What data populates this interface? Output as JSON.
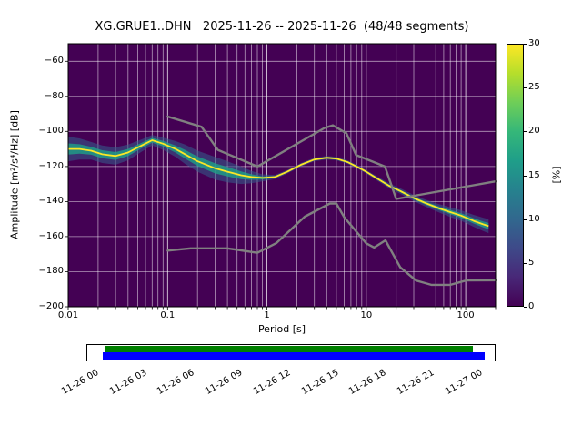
{
  "chart_data": {
    "type": "heatmap",
    "title": "XG.GRUE1..DHN   2025-11-26 -- 2025-11-26  (48/48 segments)",
    "xlabel": "Period [s]",
    "ylabel": "Amplitude [m²/s⁴/Hz] [dB]",
    "xscale": "log",
    "xlim": [
      0.01,
      200
    ],
    "ylim": [
      -200,
      -50
    ],
    "xticks": [
      0.01,
      0.1,
      1,
      10,
      100
    ],
    "xtick_labels": [
      "0.01",
      "0.1",
      "1",
      "10",
      "100"
    ],
    "yticks": [
      -60,
      -80,
      -100,
      -120,
      -140,
      -160,
      -180,
      -200
    ],
    "ytick_labels": [
      "−60",
      "−80",
      "−100",
      "−120",
      "−140",
      "−160",
      "−180",
      "−200"
    ],
    "grid": true,
    "background_color": "#440154",
    "grid_color": "#ffffff",
    "colorbar": {
      "label": "[%]",
      "min": 0,
      "max": 30,
      "ticks": [
        0,
        5,
        10,
        15,
        20,
        25,
        30
      ],
      "colors": [
        "#440154",
        "#482878",
        "#3e4a89",
        "#31688e",
        "#26828e",
        "#1f9e89",
        "#35b779",
        "#6ece58",
        "#b5de2b",
        "#fde725"
      ]
    },
    "psd_mode": {
      "comment": "mode of probabilistic power spectral density; spread_db is half-width of probability haze",
      "periods": [
        0.01,
        0.013,
        0.017,
        0.022,
        0.03,
        0.04,
        0.055,
        0.07,
        0.09,
        0.12,
        0.15,
        0.2,
        0.3,
        0.4,
        0.55,
        0.7,
        0.9,
        1.2,
        1.6,
        2.2,
        3,
        4,
        5,
        6.5,
        8,
        10,
        13,
        17,
        22,
        30,
        40,
        55,
        70,
        90,
        120,
        150,
        170
      ],
      "db": [
        -110,
        -110,
        -111,
        -113,
        -114,
        -112,
        -108,
        -105,
        -107,
        -110,
        -113,
        -117,
        -121,
        -123,
        -125,
        -126,
        -126.5,
        -126,
        -123,
        -119,
        -116,
        -115,
        -115.5,
        -117.5,
        -120,
        -123,
        -127,
        -131,
        -134,
        -138,
        -141,
        -144,
        -146,
        -148,
        -151,
        -153,
        -154
      ],
      "spread_db": [
        7,
        6,
        5,
        5,
        5,
        4.5,
        3.5,
        3,
        3.5,
        4.5,
        5.5,
        6,
        6.5,
        6,
        5,
        3.5,
        2,
        1.2,
        1,
        1,
        1,
        1,
        1,
        1,
        1,
        1,
        1.2,
        1.4,
        1.6,
        1.8,
        2,
        2.4,
        2.8,
        3,
        3.4,
        3.8,
        4
      ]
    },
    "noise_models": {
      "color": "#808080",
      "nhnm": {
        "periods": [
          0.1,
          0.22,
          0.32,
          0.8,
          3.8,
          4.6,
          6.3,
          7.9,
          15.4,
          20,
          100,
          200
        ],
        "db": [
          -91.5,
          -97.4,
          -110.5,
          -120,
          -98,
          -96.5,
          -101,
          -113.5,
          -120,
          -138.5,
          -131.5,
          -128.5
        ]
      },
      "nlnm": {
        "periods": [
          0.1,
          0.17,
          0.4,
          0.8,
          1.24,
          2.4,
          4.3,
          5,
          6,
          10,
          12,
          15.6,
          22,
          31.6,
          45,
          70,
          101,
          200
        ],
        "db": [
          -168,
          -166.7,
          -166.7,
          -169.2,
          -163.7,
          -148.6,
          -141.1,
          -141.1,
          -149,
          -163.8,
          -166.2,
          -162.1,
          -177.5,
          -185,
          -187.5,
          -187.5,
          -185,
          -184.9
        ]
      }
    }
  },
  "timeline": {
    "labels": [
      "11-26 00",
      "11-26 03",
      "11-26 06",
      "11-26 09",
      "11-26 12",
      "11-26 15",
      "11-26 18",
      "11-26 21",
      "11-27 00"
    ],
    "green": "#008000",
    "blue": "#0000ff"
  }
}
